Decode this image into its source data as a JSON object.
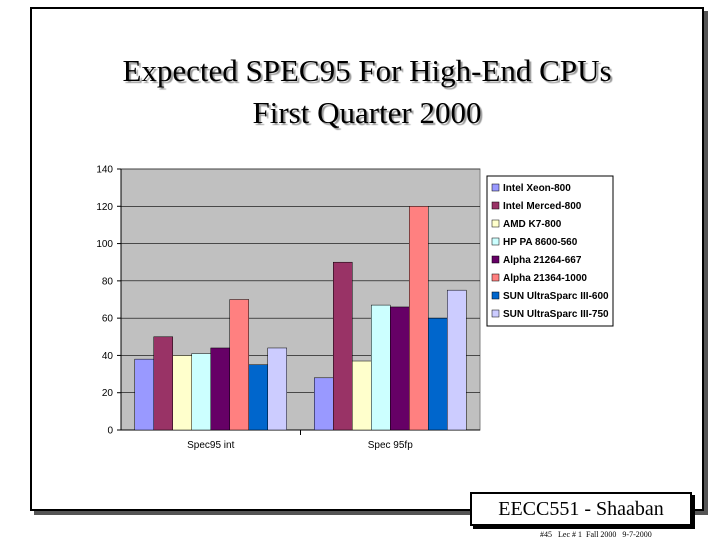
{
  "slide": {
    "title_line1": "Expected SPEC95 For High-End CPUs",
    "title_line2": "First Quarter 2000",
    "badge": "EECC551 - Shaaban",
    "footer": "#45   Lec # 1  Fall 2000   9-7-2000"
  },
  "chart_data": {
    "type": "bar",
    "categories": [
      "Spec95 int",
      "Spec 95fp"
    ],
    "ylim": [
      0,
      140
    ],
    "yticks": [
      0,
      20,
      40,
      60,
      80,
      100,
      120,
      140
    ],
    "legend_position": "right",
    "grid": true,
    "series": [
      {
        "name": "Intel Xeon-800",
        "color": "#9999ff",
        "values": [
          38,
          28
        ]
      },
      {
        "name": "Intel Merced-800",
        "color": "#993366",
        "values": [
          50,
          90
        ]
      },
      {
        "name": "AMD K7-800",
        "color": "#ffffcc",
        "values": [
          40,
          37
        ]
      },
      {
        "name": "HP PA 8600-560",
        "color": "#ccffff",
        "values": [
          41,
          67
        ]
      },
      {
        "name": "Alpha 21264-667",
        "color": "#660066",
        "values": [
          44,
          66
        ]
      },
      {
        "name": "Alpha 21364-1000",
        "color": "#ff8080",
        "values": [
          70,
          120
        ]
      },
      {
        "name": "SUN UltraSparc III-600",
        "color": "#0066cc",
        "values": [
          35,
          60
        ]
      },
      {
        "name": "SUN UltraSparc III-750",
        "color": "#ccccff",
        "values": [
          44,
          75
        ]
      }
    ]
  }
}
